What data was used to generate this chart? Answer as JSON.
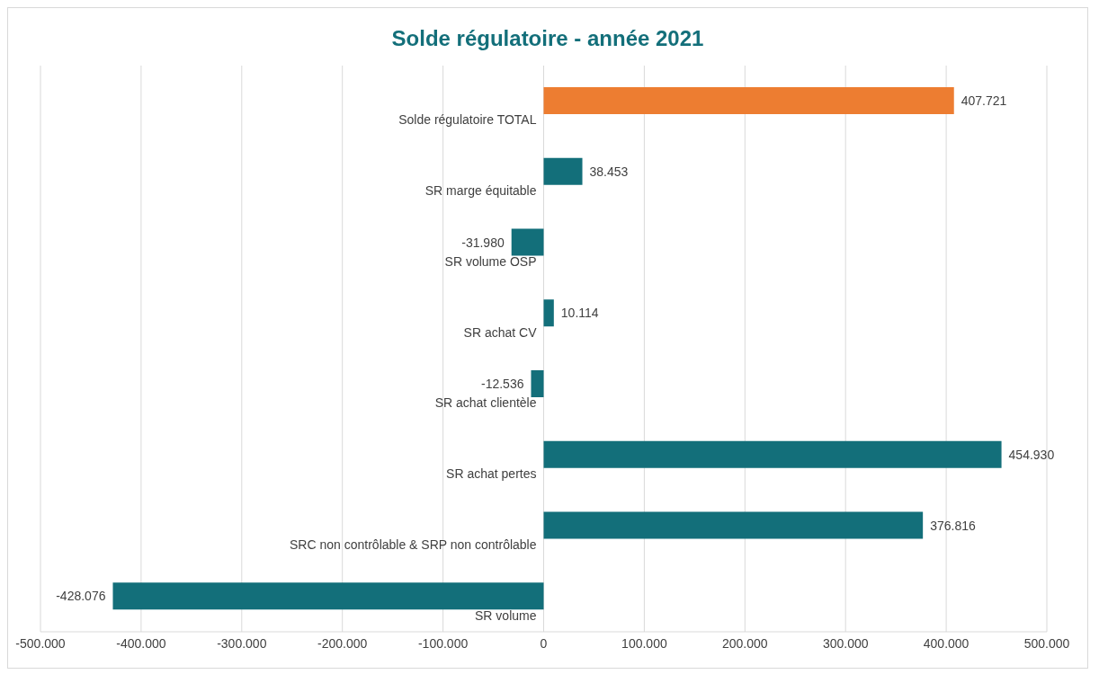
{
  "chart_data": {
    "type": "bar",
    "orientation": "horizontal",
    "title": "Solde régulatoire - année 2021",
    "categories": [
      "Solde régulatoire TOTAL",
      "SR marge équitable",
      "SR volume OSP",
      "SR achat CV",
      "SR achat clientèle",
      "SR achat pertes",
      "SRC non contrôlable & SRP non contrôlable",
      "SR  volume"
    ],
    "values": [
      407721,
      38453,
      -31980,
      10114,
      -12536,
      454930,
      376816,
      -428076
    ],
    "colors": [
      "#ed7d31",
      "#136f7a",
      "#136f7a",
      "#136f7a",
      "#136f7a",
      "#136f7a",
      "#136f7a",
      "#136f7a"
    ],
    "value_labels": [
      "407.721",
      "38.453",
      "-31.980",
      "10.114",
      "-12.536",
      "454.930",
      "376.816",
      "-428.076"
    ],
    "xlim": [
      -500000,
      500000
    ],
    "xticks": [
      {
        "value": -500000,
        "label": "-500.000"
      },
      {
        "value": -400000,
        "label": "-400.000"
      },
      {
        "value": -300000,
        "label": "-300.000"
      },
      {
        "value": -200000,
        "label": "-200.000"
      },
      {
        "value": -100000,
        "label": "-100.000"
      },
      0,
      {
        "value": 100000,
        "label": "100.000"
      },
      {
        "value": 200000,
        "label": "200.000"
      },
      {
        "value": 300000,
        "label": "300.000"
      },
      {
        "value": 400000,
        "label": "400.000"
      },
      {
        "value": 500000,
        "label": "500.000"
      }
    ],
    "grid": "x"
  }
}
